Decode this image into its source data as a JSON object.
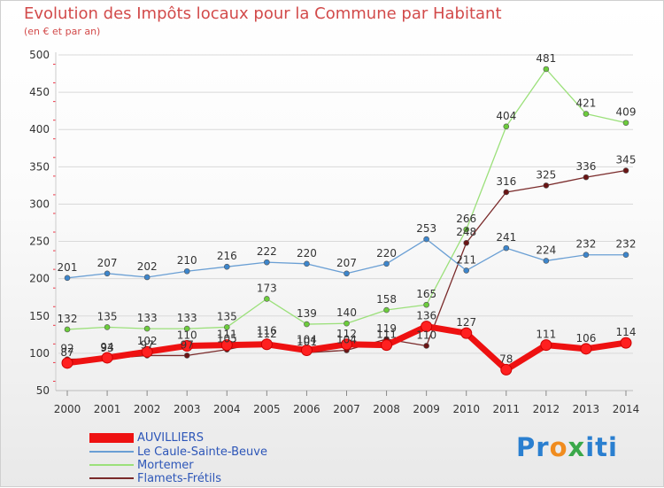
{
  "title": "Evolution des Impôts locaux pour la Commune par Habitant",
  "subtitle": "(en € et par an)",
  "logo_text": [
    "Pr",
    "o",
    "x",
    "iti"
  ],
  "colors": {
    "title": "#d24a4a",
    "legend_text": "#2d56b8",
    "grid": "#d9d9d9"
  },
  "chart_data": {
    "type": "line",
    "title": "Evolution des Impôts locaux pour la Commune par Habitant",
    "subtitle": "(en € et par an)",
    "xlabel": "",
    "ylabel": "",
    "ylim": [
      50,
      500
    ],
    "yticks": [
      50,
      100,
      150,
      200,
      250,
      300,
      350,
      400,
      450,
      500
    ],
    "grid": "horizontal",
    "legend_position": "bottom-left",
    "categories": [
      "2000",
      "2001",
      "2002",
      "2003",
      "2004",
      "2005",
      "2006",
      "2007",
      "2008",
      "2009",
      "2010",
      "2011",
      "2012",
      "2013",
      "2014"
    ],
    "series": [
      {
        "name": "AUVILLIERS",
        "color": "#ee1111",
        "marker_color": "#ff2020",
        "values": [
          87,
          94,
          102,
          110,
          111,
          112,
          104,
          112,
          111,
          136,
          127,
          78,
          111,
          106,
          114
        ],
        "labels": [
          "87",
          "94",
          "102",
          "110",
          "111",
          "112",
          "104",
          "112",
          "111",
          "136",
          "127",
          "78",
          "111",
          "106",
          "114"
        ]
      },
      {
        "name": "Le Caule-Sainte-Beuve",
        "color": "#6a9fd4",
        "marker_color": "#3d86cc",
        "values": [
          201,
          207,
          202,
          210,
          216,
          222,
          220,
          207,
          220,
          253,
          211,
          241,
          224,
          232,
          232
        ],
        "labels": [
          "201",
          "207",
          "202",
          "210",
          "216",
          "222",
          "220",
          "207",
          "220",
          "253",
          "211",
          "241",
          "224",
          "232",
          "232"
        ]
      },
      {
        "name": "Mortemer",
        "color": "#9be07a",
        "marker_color": "#6ccc3c",
        "values": [
          132,
          135,
          133,
          133,
          135,
          173,
          139,
          140,
          158,
          165,
          266,
          404,
          481,
          421,
          409
        ],
        "labels": [
          "132",
          "135",
          "133",
          "133",
          "135",
          "173",
          "139",
          "140",
          "158",
          "165",
          "266",
          "404",
          "481",
          "421",
          "409"
        ]
      },
      {
        "name": "Flamets-Frétils",
        "color": "#7a2a2a",
        "marker_color": "#6a1515",
        "values": [
          92,
          93,
          97,
          97,
          105,
          116,
          101,
          104,
          119,
          110,
          248,
          316,
          325,
          336,
          345
        ],
        "labels": [
          "92",
          "93",
          "97",
          "97",
          "105",
          "116",
          "101",
          "104",
          "119",
          "110",
          "248",
          "316",
          "325",
          "336",
          "345"
        ]
      }
    ]
  }
}
